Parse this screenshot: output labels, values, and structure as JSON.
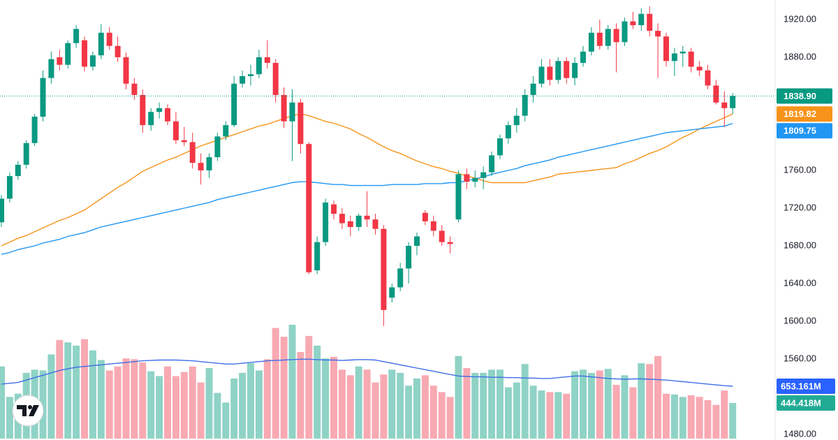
{
  "chart_data": {
    "type": "candlestick",
    "ylim": [
      1475.6,
      1940.7
    ],
    "yticks": [
      {
        "value": 1920,
        "label": "1920.00"
      },
      {
        "value": 1880,
        "label": "1880.00"
      },
      {
        "value": 1760,
        "label": "1760.00"
      },
      {
        "value": 1720,
        "label": "1720.00"
      },
      {
        "value": 1680,
        "label": "1680.00"
      },
      {
        "value": 1640,
        "label": "1640.00"
      },
      {
        "value": 1600,
        "label": "1600.00"
      },
      {
        "value": 1560,
        "label": "1560.00"
      },
      {
        "value": 1480,
        "label": "1480.00"
      }
    ],
    "y2lim": [
      0,
      5470
    ],
    "up_color": "#089981",
    "down_color": "#f23645",
    "open": [
      1705,
      1730,
      1754,
      1766,
      1789,
      1817,
      1858,
      1880,
      1872,
      1895,
      1898,
      1870,
      1882,
      1906,
      1892,
      1880,
      1852,
      1840,
      1808,
      1822,
      1826,
      1812,
      1792,
      1790,
      1768,
      1760,
      1774,
      1796,
      1808,
      1852,
      1860,
      1862,
      1880,
      1874,
      1840,
      1812,
      1832,
      1788,
      1654,
      1684,
      1724,
      1714,
      1706,
      1700,
      1712,
      1708,
      1698,
      1625,
      1636,
      1656,
      1680,
      1715,
      1706,
      1696,
      1684,
      1708,
      1756,
      1748,
      1752,
      1758,
      1776,
      1794,
      1808,
      1818,
      1840,
      1852,
      1870,
      1856,
      1876,
      1858,
      1874,
      1886,
      1906,
      1892,
      1910,
      1896,
      1918,
      1914,
      1926,
      1908,
      1902,
      1876,
      1884,
      1886,
      1870,
      1866,
      1850,
      1832,
      1826
    ],
    "high": [
      1734,
      1758,
      1770,
      1792,
      1820,
      1866,
      1886,
      1888,
      1898,
      1914,
      1902,
      1886,
      1915,
      1912,
      1902,
      1885,
      1858,
      1846,
      1826,
      1832,
      1830,
      1822,
      1806,
      1800,
      1778,
      1778,
      1800,
      1812,
      1860,
      1866,
      1872,
      1888,
      1898,
      1878,
      1848,
      1846,
      1836,
      1790,
      1690,
      1730,
      1728,
      1720,
      1712,
      1714,
      1738,
      1714,
      1702,
      1640,
      1662,
      1684,
      1694,
      1718,
      1712,
      1702,
      1690,
      1760,
      1762,
      1760,
      1764,
      1780,
      1798,
      1812,
      1826,
      1846,
      1860,
      1878,
      1878,
      1880,
      1880,
      1880,
      1892,
      1912,
      1920,
      1914,
      1916,
      1922,
      1928,
      1932,
      1934,
      1916,
      1906,
      1890,
      1892,
      1890,
      1876,
      1872,
      1856,
      1844,
      1842
    ],
    "low": [
      1700,
      1726,
      1750,
      1762,
      1786,
      1812,
      1852,
      1866,
      1868,
      1890,
      1865,
      1866,
      1878,
      1888,
      1875,
      1846,
      1835,
      1800,
      1802,
      1815,
      1808,
      1788,
      1786,
      1762,
      1745,
      1752,
      1770,
      1792,
      1806,
      1848,
      1850,
      1858,
      1868,
      1832,
      1805,
      1770,
      1778,
      1650,
      1650,
      1680,
      1708,
      1698,
      1690,
      1696,
      1700,
      1692,
      1595,
      1620,
      1632,
      1640,
      1670,
      1702,
      1690,
      1680,
      1672,
      1705,
      1740,
      1742,
      1740,
      1754,
      1772,
      1788,
      1800,
      1812,
      1832,
      1848,
      1850,
      1852,
      1852,
      1850,
      1870,
      1882,
      1888,
      1888,
      1864,
      1892,
      1910,
      1908,
      1902,
      1858,
      1870,
      1860,
      1870,
      1864,
      1860,
      1846,
      1830,
      1806,
      1820
    ],
    "close": [
      1730,
      1754,
      1766,
      1789,
      1817,
      1858,
      1878,
      1872,
      1895,
      1910,
      1870,
      1882,
      1906,
      1892,
      1880,
      1852,
      1840,
      1808,
      1822,
      1826,
      1812,
      1792,
      1790,
      1768,
      1760,
      1774,
      1796,
      1808,
      1852,
      1860,
      1862,
      1880,
      1874,
      1840,
      1812,
      1832,
      1788,
      1652,
      1684,
      1726,
      1714,
      1704,
      1700,
      1712,
      1708,
      1698,
      1612,
      1636,
      1656,
      1680,
      1690,
      1706,
      1696,
      1684,
      1682,
      1756,
      1748,
      1752,
      1758,
      1776,
      1794,
      1808,
      1818,
      1840,
      1852,
      1870,
      1856,
      1876,
      1858,
      1874,
      1886,
      1906,
      1892,
      1910,
      1896,
      1918,
      1914,
      1926,
      1908,
      1902,
      1876,
      1884,
      1886,
      1870,
      1866,
      1850,
      1832,
      1826,
      1838.9
    ],
    "close_label": "1838.90",
    "series": [
      {
        "color": "#f7931a",
        "last_label": "1819.82",
        "values": [
          1680,
          1684,
          1688,
          1691,
          1695,
          1699,
          1703,
          1707,
          1710,
          1714,
          1718,
          1724,
          1730,
          1736,
          1742,
          1747,
          1753,
          1759,
          1763,
          1767,
          1771,
          1774,
          1778,
          1782,
          1786,
          1789,
          1792,
          1795,
          1798,
          1801,
          1804,
          1807,
          1809,
          1812,
          1815,
          1818,
          1820,
          1818,
          1815,
          1812,
          1810,
          1807,
          1804,
          1799,
          1795,
          1790,
          1785,
          1781,
          1778,
          1774,
          1770,
          1767,
          1764,
          1762,
          1759,
          1757,
          1754,
          1752,
          1749,
          1747,
          1747,
          1747,
          1747,
          1747,
          1749,
          1751,
          1753,
          1756,
          1757,
          1758,
          1759,
          1760,
          1761,
          1762,
          1763,
          1767,
          1770,
          1774,
          1778,
          1781,
          1785,
          1790,
          1795,
          1799,
          1804,
          1808,
          1812,
          1816,
          1819.82
        ]
      },
      {
        "color": "#2196f3",
        "last_label": "1809.75",
        "values": [
          1671,
          1673,
          1676,
          1678,
          1680,
          1683,
          1685,
          1687,
          1690,
          1692,
          1694,
          1697,
          1700,
          1702,
          1704,
          1706,
          1708,
          1710,
          1712,
          1714,
          1716,
          1718,
          1720,
          1722,
          1724,
          1726,
          1729,
          1731,
          1733,
          1735,
          1737,
          1739,
          1741,
          1743,
          1745,
          1747,
          1748,
          1748,
          1747,
          1746,
          1745,
          1745,
          1744,
          1744,
          1744,
          1744,
          1744,
          1745,
          1745,
          1745,
          1745,
          1746,
          1746,
          1746,
          1747,
          1747,
          1749,
          1751,
          1753,
          1756,
          1758,
          1760,
          1762,
          1765,
          1767,
          1769,
          1771,
          1774,
          1776,
          1778,
          1780,
          1782,
          1784,
          1786,
          1788,
          1790,
          1792,
          1794,
          1796,
          1798,
          1800,
          1801,
          1802,
          1803,
          1804,
          1805,
          1806,
          1807,
          1809.75
        ]
      }
    ],
    "volume": {
      "axis": "y2",
      "up_color": "#8fd3c6",
      "down_color": "#f8a9b2",
      "label_color": "#22ab94",
      "last_label": "444.418M",
      "values": [
        900,
        520,
        560,
        820,
        860,
        850,
        1050,
        1230,
        1200,
        1160,
        1240,
        1100,
        980,
        850,
        900,
        1000,
        990,
        950,
        840,
        780,
        900,
        780,
        830,
        900,
        700,
        880,
        570,
        450,
        750,
        820,
        940,
        850,
        990,
        1380,
        1270,
        1420,
        1080,
        1280,
        1160,
        1000,
        1020,
        860,
        790,
        900,
        860,
        700,
        800,
        860,
        820,
        660,
        750,
        790,
        660,
        580,
        520,
        1030,
        880,
        820,
        820,
        860,
        860,
        640,
        700,
        930,
        660,
        600,
        580,
        580,
        560,
        840,
        860,
        820,
        850,
        870,
        670,
        790,
        640,
        940,
        930,
        1030,
        560,
        550,
        520,
        540,
        520,
        480,
        420,
        600,
        444.418
      ]
    },
    "volume_ma": {
      "axis": "y2",
      "color": "#3f6ee8",
      "label_color": "#2962ff",
      "last_label": "653.161M",
      "values": [
        680,
        690,
        700,
        730,
        760,
        790,
        820,
        850,
        870,
        890,
        900,
        910,
        920,
        930,
        940,
        950,
        960,
        970,
        975,
        980,
        980,
        980,
        975,
        970,
        960,
        950,
        940,
        930,
        930,
        940,
        950,
        960,
        970,
        975,
        980,
        985,
        990,
        990,
        985,
        980,
        980,
        975,
        980,
        985,
        985,
        980,
        960,
        940,
        920,
        900,
        880,
        860,
        840,
        820,
        800,
        780,
        775,
        770,
        770,
        765,
        765,
        760,
        760,
        755,
        755,
        750,
        750,
        760,
        770,
        780,
        780,
        770,
        760,
        750,
        745,
        740,
        745,
        745,
        740,
        735,
        730,
        720,
        710,
        700,
        690,
        680,
        670,
        660,
        653.161
      ]
    }
  }
}
